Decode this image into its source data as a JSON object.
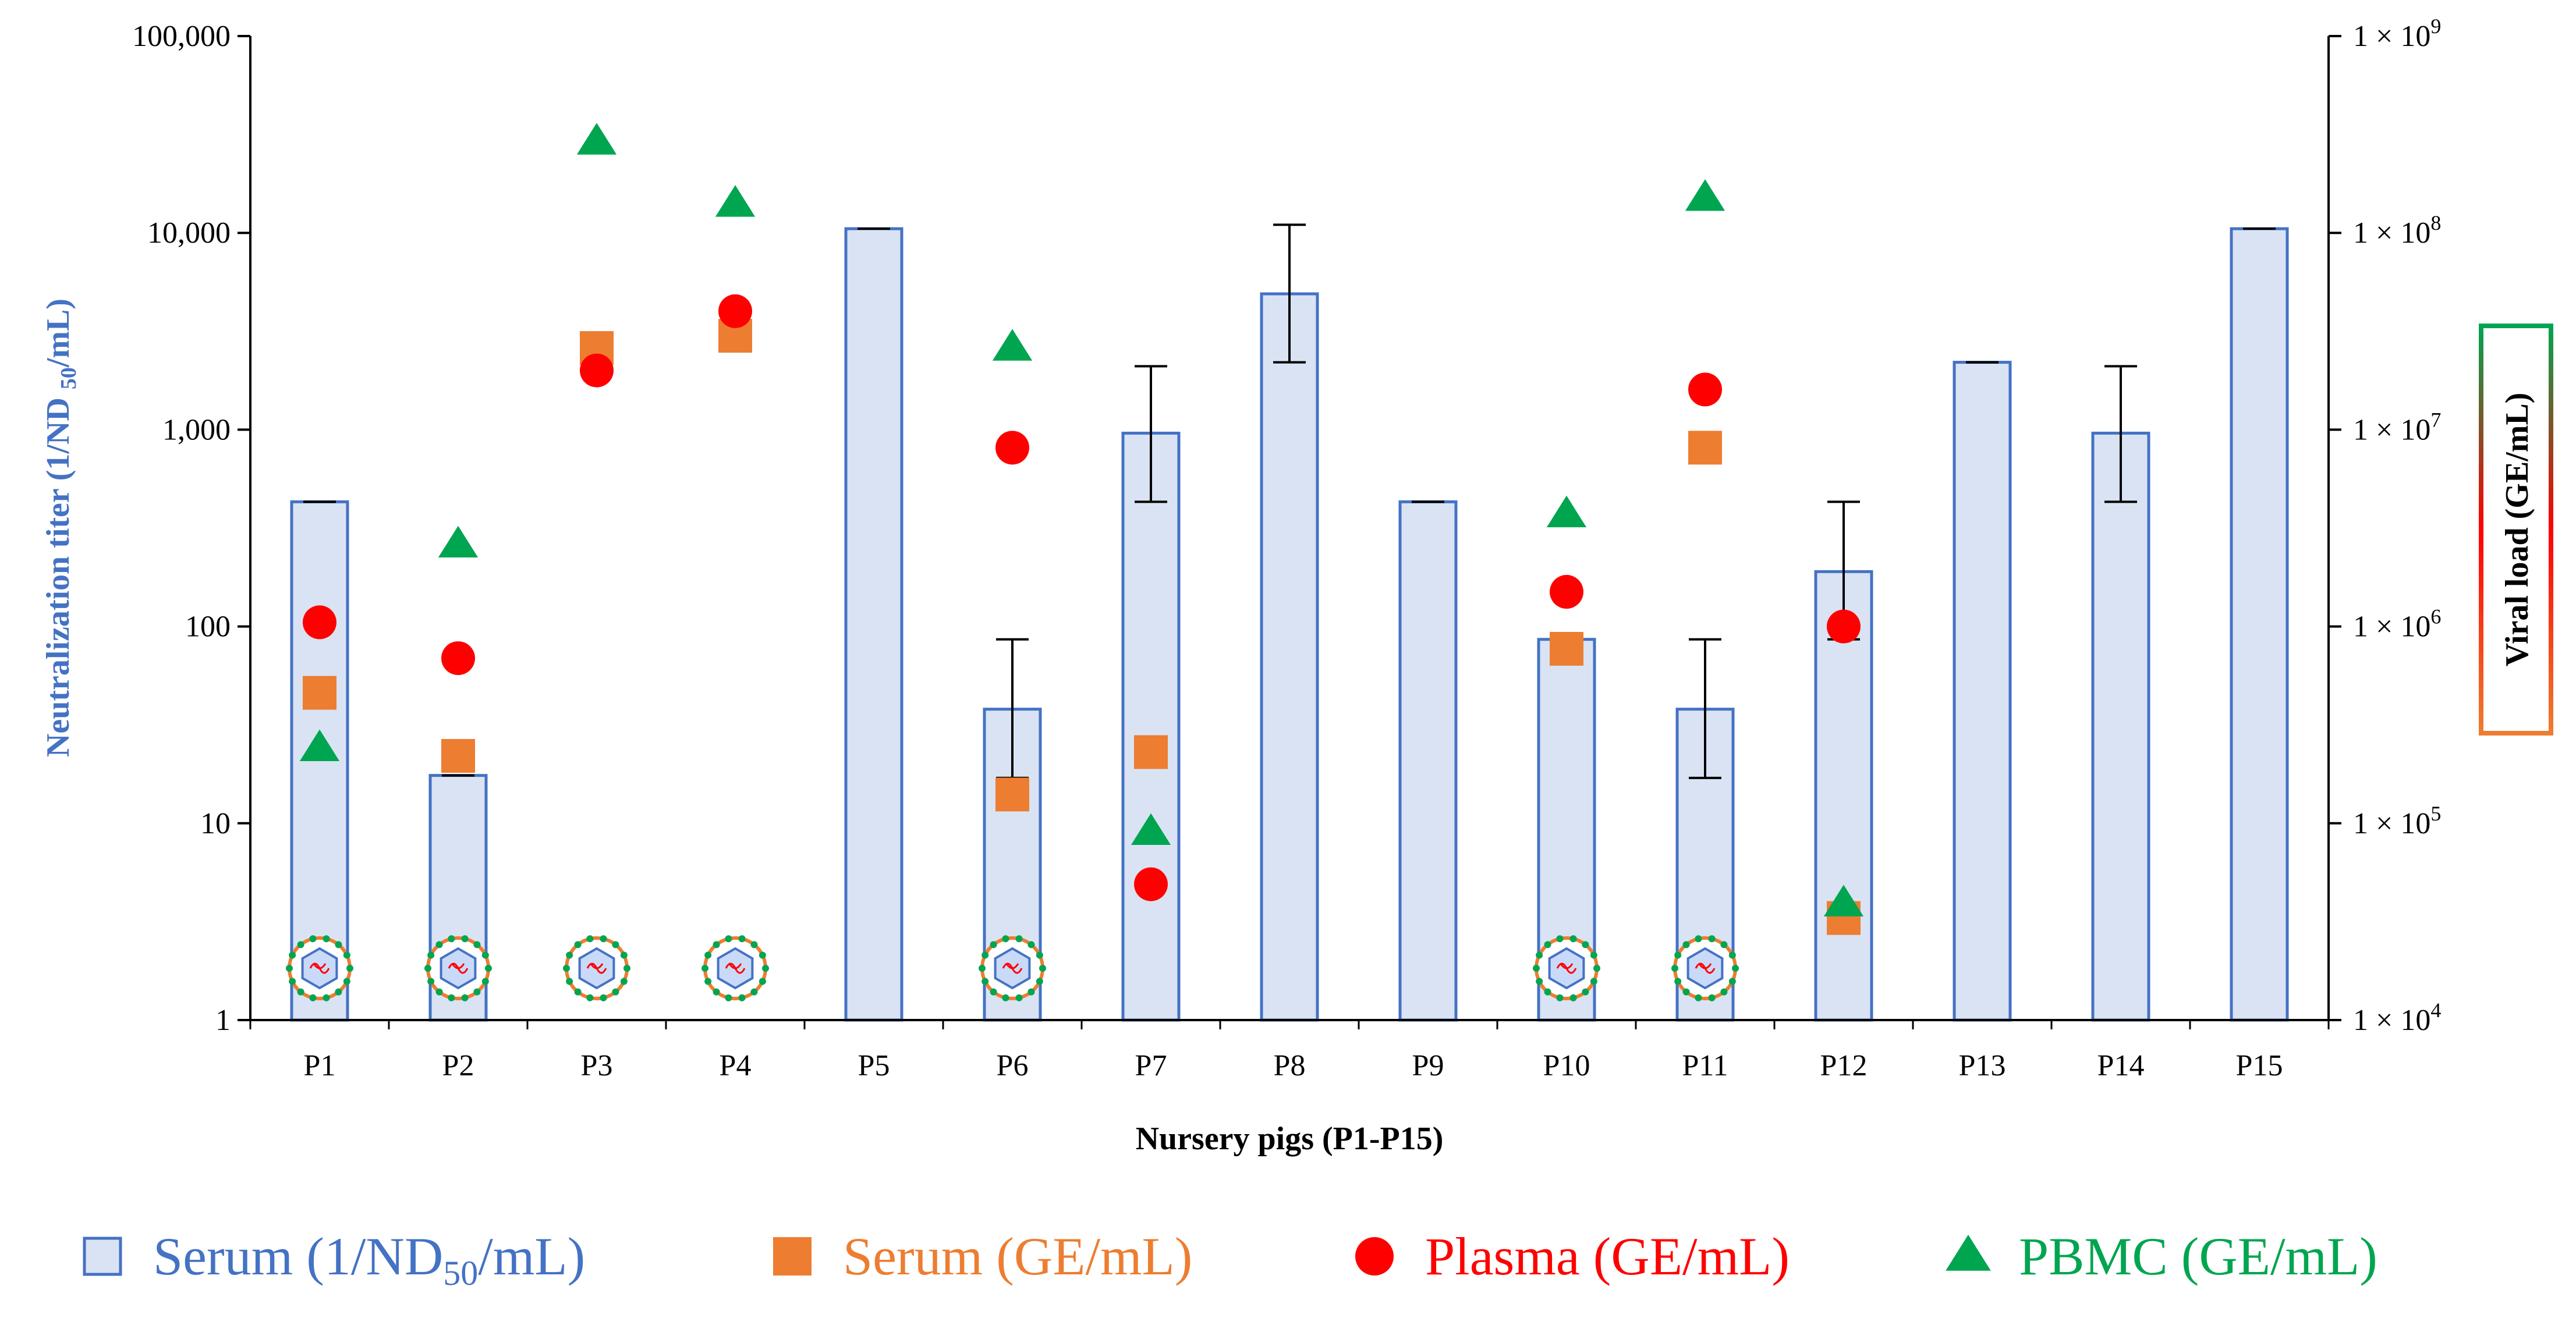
{
  "chart_data": {
    "type": "bar",
    "title": "",
    "xlabel": "Nursery pigs (P1-P15)",
    "ylabel": "Neutralization titer (1/ND50/mL)",
    "y2label": "Viral load (GE/mL)",
    "yscale": "log",
    "ylim": [
      1,
      100000
    ],
    "y2lim": [
      10000,
      1000000000
    ],
    "categories": [
      "P1",
      "P2",
      "P3",
      "P4",
      "P5",
      "P6",
      "P7",
      "P8",
      "P9",
      "P10",
      "P11",
      "P12",
      "P13",
      "P14",
      "P15"
    ],
    "left_ticks": [
      "1",
      "10",
      "100",
      "1,000",
      "10,000",
      "100,000"
    ],
    "right_tick_base": "1 × 10",
    "right_tick_exponents": [
      "4",
      "5",
      "6",
      "7",
      "8",
      "9"
    ],
    "series": [
      {
        "name": "Serum (1/ND50/mL)",
        "type": "bar",
        "axis": "left",
        "values": [
          430,
          17.5,
          null,
          null,
          10500,
          38,
          960,
          4900,
          430,
          86,
          38,
          190,
          2200,
          960,
          10500
        ],
        "err_low": [
          430,
          17.5,
          null,
          null,
          10500,
          17,
          430,
          2200,
          430,
          86,
          17,
          86,
          2200,
          430,
          10500
        ],
        "err_high": [
          430,
          17.5,
          null,
          null,
          10500,
          86,
          2100,
          11000,
          430,
          86,
          86,
          430,
          2200,
          2100,
          10500
        ]
      },
      {
        "name": "Serum (GE/mL)",
        "type": "scatter",
        "marker": "square",
        "axis": "right",
        "values": [
          460000,
          220000,
          26000000,
          30000000,
          null,
          140000,
          230000,
          null,
          null,
          770000,
          8100000,
          33000,
          null,
          null,
          null
        ]
      },
      {
        "name": "Plasma (GE/mL)",
        "type": "scatter",
        "marker": "circle",
        "axis": "right",
        "values": [
          1050000,
          690000,
          20000000,
          40000000,
          null,
          8100000,
          49000,
          null,
          null,
          1500000,
          16000000,
          1000000,
          null,
          null,
          null
        ]
      },
      {
        "name": "PBMC (GE/mL)",
        "type": "scatter",
        "marker": "triangle",
        "axis": "right",
        "values": [
          240000,
          2600000,
          290000000,
          140000000,
          null,
          26000000,
          90000,
          null,
          null,
          3700000,
          150000000,
          39000,
          null,
          null,
          null
        ]
      }
    ],
    "virus_icon_pigs": [
      "P1",
      "P2",
      "P3",
      "P4",
      "P6",
      "P10",
      "P11"
    ],
    "legend": {
      "position": "bottom",
      "items": [
        {
          "prefix": "Serum (1/ND",
          "sub": "50",
          "suffix": "/mL)",
          "color": "#4472C4",
          "marker": "bar"
        },
        {
          "prefix": "Serum (GE/mL)",
          "sub": "",
          "suffix": "",
          "color": "#ED7D31",
          "marker": "square"
        },
        {
          "prefix": "Plasma (GE/mL)",
          "sub": "",
          "suffix": "",
          "color": "#FF0000",
          "marker": "circle"
        },
        {
          "prefix": "PBMC (GE/mL)",
          "sub": "",
          "suffix": "",
          "color": "#00A550",
          "marker": "triangle"
        }
      ]
    }
  },
  "colors": {
    "bar_fill": "#DAE3F3",
    "bar_stroke": "#4472C4",
    "square": "#ED7D31",
    "circle": "#FF0000",
    "triangle": "#00A550",
    "left_title": "#4472C4",
    "virus_ring": "#ED7D31",
    "virus_dots": "#00A550"
  }
}
